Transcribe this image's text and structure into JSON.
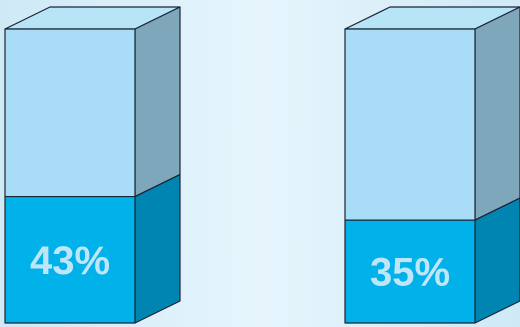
{
  "chart_data": {
    "type": "bar",
    "style": "3d-stacked-percentage-columns",
    "categories": [
      "",
      ""
    ],
    "values": [
      43,
      35
    ],
    "data_labels": [
      "43%",
      "35%"
    ],
    "ylim": [
      0,
      100
    ],
    "grid": false,
    "legend": "none",
    "title": "",
    "xlabel": "",
    "ylabel": ""
  },
  "colors": {
    "background": "#dff2fb",
    "empty_front": "#a9dcf6",
    "empty_top": "#b8e4f8",
    "empty_side": "#7ea7bb",
    "fill_front": "#00b1ea",
    "fill_side": "#0085b3",
    "label": "#bfe6f8",
    "outline": "#1a2430"
  }
}
